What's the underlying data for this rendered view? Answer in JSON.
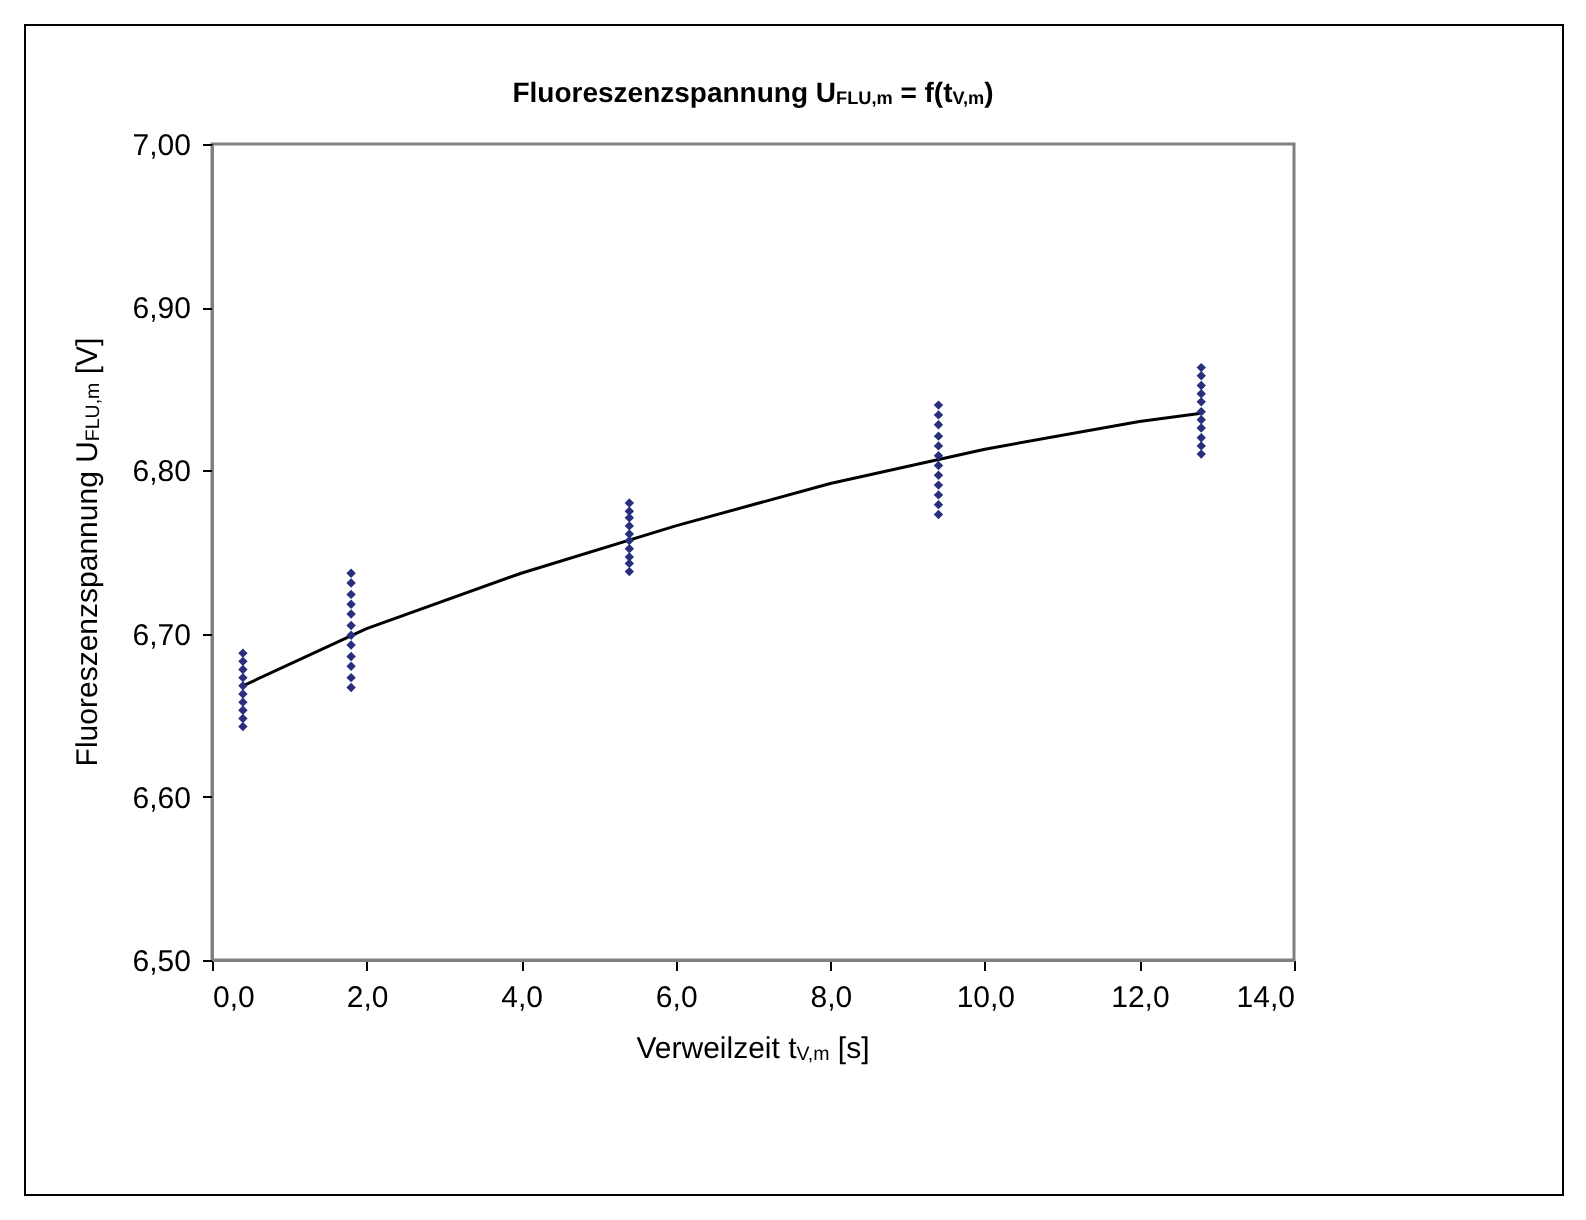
{
  "chart_data": {
    "type": "scatter",
    "title": "Fluoreszenzspannung U$_{FLU,m}$ = f(t$_{V,m}$)",
    "xlabel": "Verweilzeit t$_{V,m}$ [s]",
    "ylabel": "Fluoreszenzspannung U$_{FLU,m}$ [V]",
    "series": [
      {
        "color": "#28307e",
        "marker": "diamond",
        "x": [
          0.4,
          0.4,
          0.4,
          0.4,
          0.4,
          0.4,
          0.4,
          0.4,
          0.4,
          0.4,
          1.8,
          1.8,
          1.8,
          1.8,
          1.8,
          1.8,
          1.8,
          1.8,
          1.8,
          1.8,
          1.8,
          1.8,
          5.4,
          5.4,
          5.4,
          5.4,
          5.4,
          5.4,
          5.4,
          5.4,
          5.4,
          5.4,
          9.4,
          9.4,
          9.4,
          9.4,
          9.4,
          9.4,
          9.4,
          9.4,
          9.4,
          9.4,
          9.4,
          9.4,
          12.8,
          12.8,
          12.8,
          12.8,
          12.8,
          12.8,
          12.8,
          12.8,
          12.8,
          12.8,
          12.8
        ],
        "values": [
          6.643,
          6.648,
          6.653,
          6.658,
          6.663,
          6.668,
          6.673,
          6.678,
          6.683,
          6.688,
          6.667,
          6.673,
          6.68,
          6.686,
          6.693,
          6.699,
          6.705,
          6.712,
          6.718,
          6.724,
          6.731,
          6.737,
          6.738,
          6.743,
          6.747,
          6.752,
          6.757,
          6.761,
          6.766,
          6.771,
          6.775,
          6.78,
          6.773,
          6.779,
          6.785,
          6.791,
          6.797,
          6.803,
          6.809,
          6.815,
          6.821,
          6.828,
          6.834,
          6.84,
          6.81,
          6.815,
          6.82,
          6.826,
          6.831,
          6.836,
          6.842,
          6.847,
          6.852,
          6.858,
          6.863
        ]
      },
      {
        "type": "line",
        "color": "#000000",
        "x": [
          0.4,
          2,
          4,
          6,
          8,
          10,
          12,
          12.8
        ],
        "values": [
          6.668,
          6.703,
          6.737,
          6.766,
          6.792,
          6.813,
          6.83,
          6.835
        ]
      }
    ],
    "xlim": [
      0,
      14
    ],
    "xticks": [
      {
        "value": 0,
        "label": "0,0"
      },
      {
        "value": 2,
        "label": "2,0"
      },
      {
        "value": 4,
        "label": "4,0"
      },
      {
        "value": 6,
        "label": "6,0"
      },
      {
        "value": 8,
        "label": "8,0"
      },
      {
        "value": 10,
        "label": "10,0"
      },
      {
        "value": 12,
        "label": "12,0"
      },
      {
        "value": 14,
        "label": "14,0"
      }
    ],
    "ylim": [
      6.5,
      7.0
    ],
    "yticks": [
      {
        "value": 6.5,
        "label": "6,50"
      },
      {
        "value": 6.6,
        "label": "6,60"
      },
      {
        "value": 6.7,
        "label": "6,70"
      },
      {
        "value": 6.8,
        "label": "6,80"
      },
      {
        "value": 6.9,
        "label": "6,90"
      },
      {
        "value": 7.0,
        "label": "7,00"
      }
    ],
    "grid": false,
    "line_style": "solid"
  }
}
